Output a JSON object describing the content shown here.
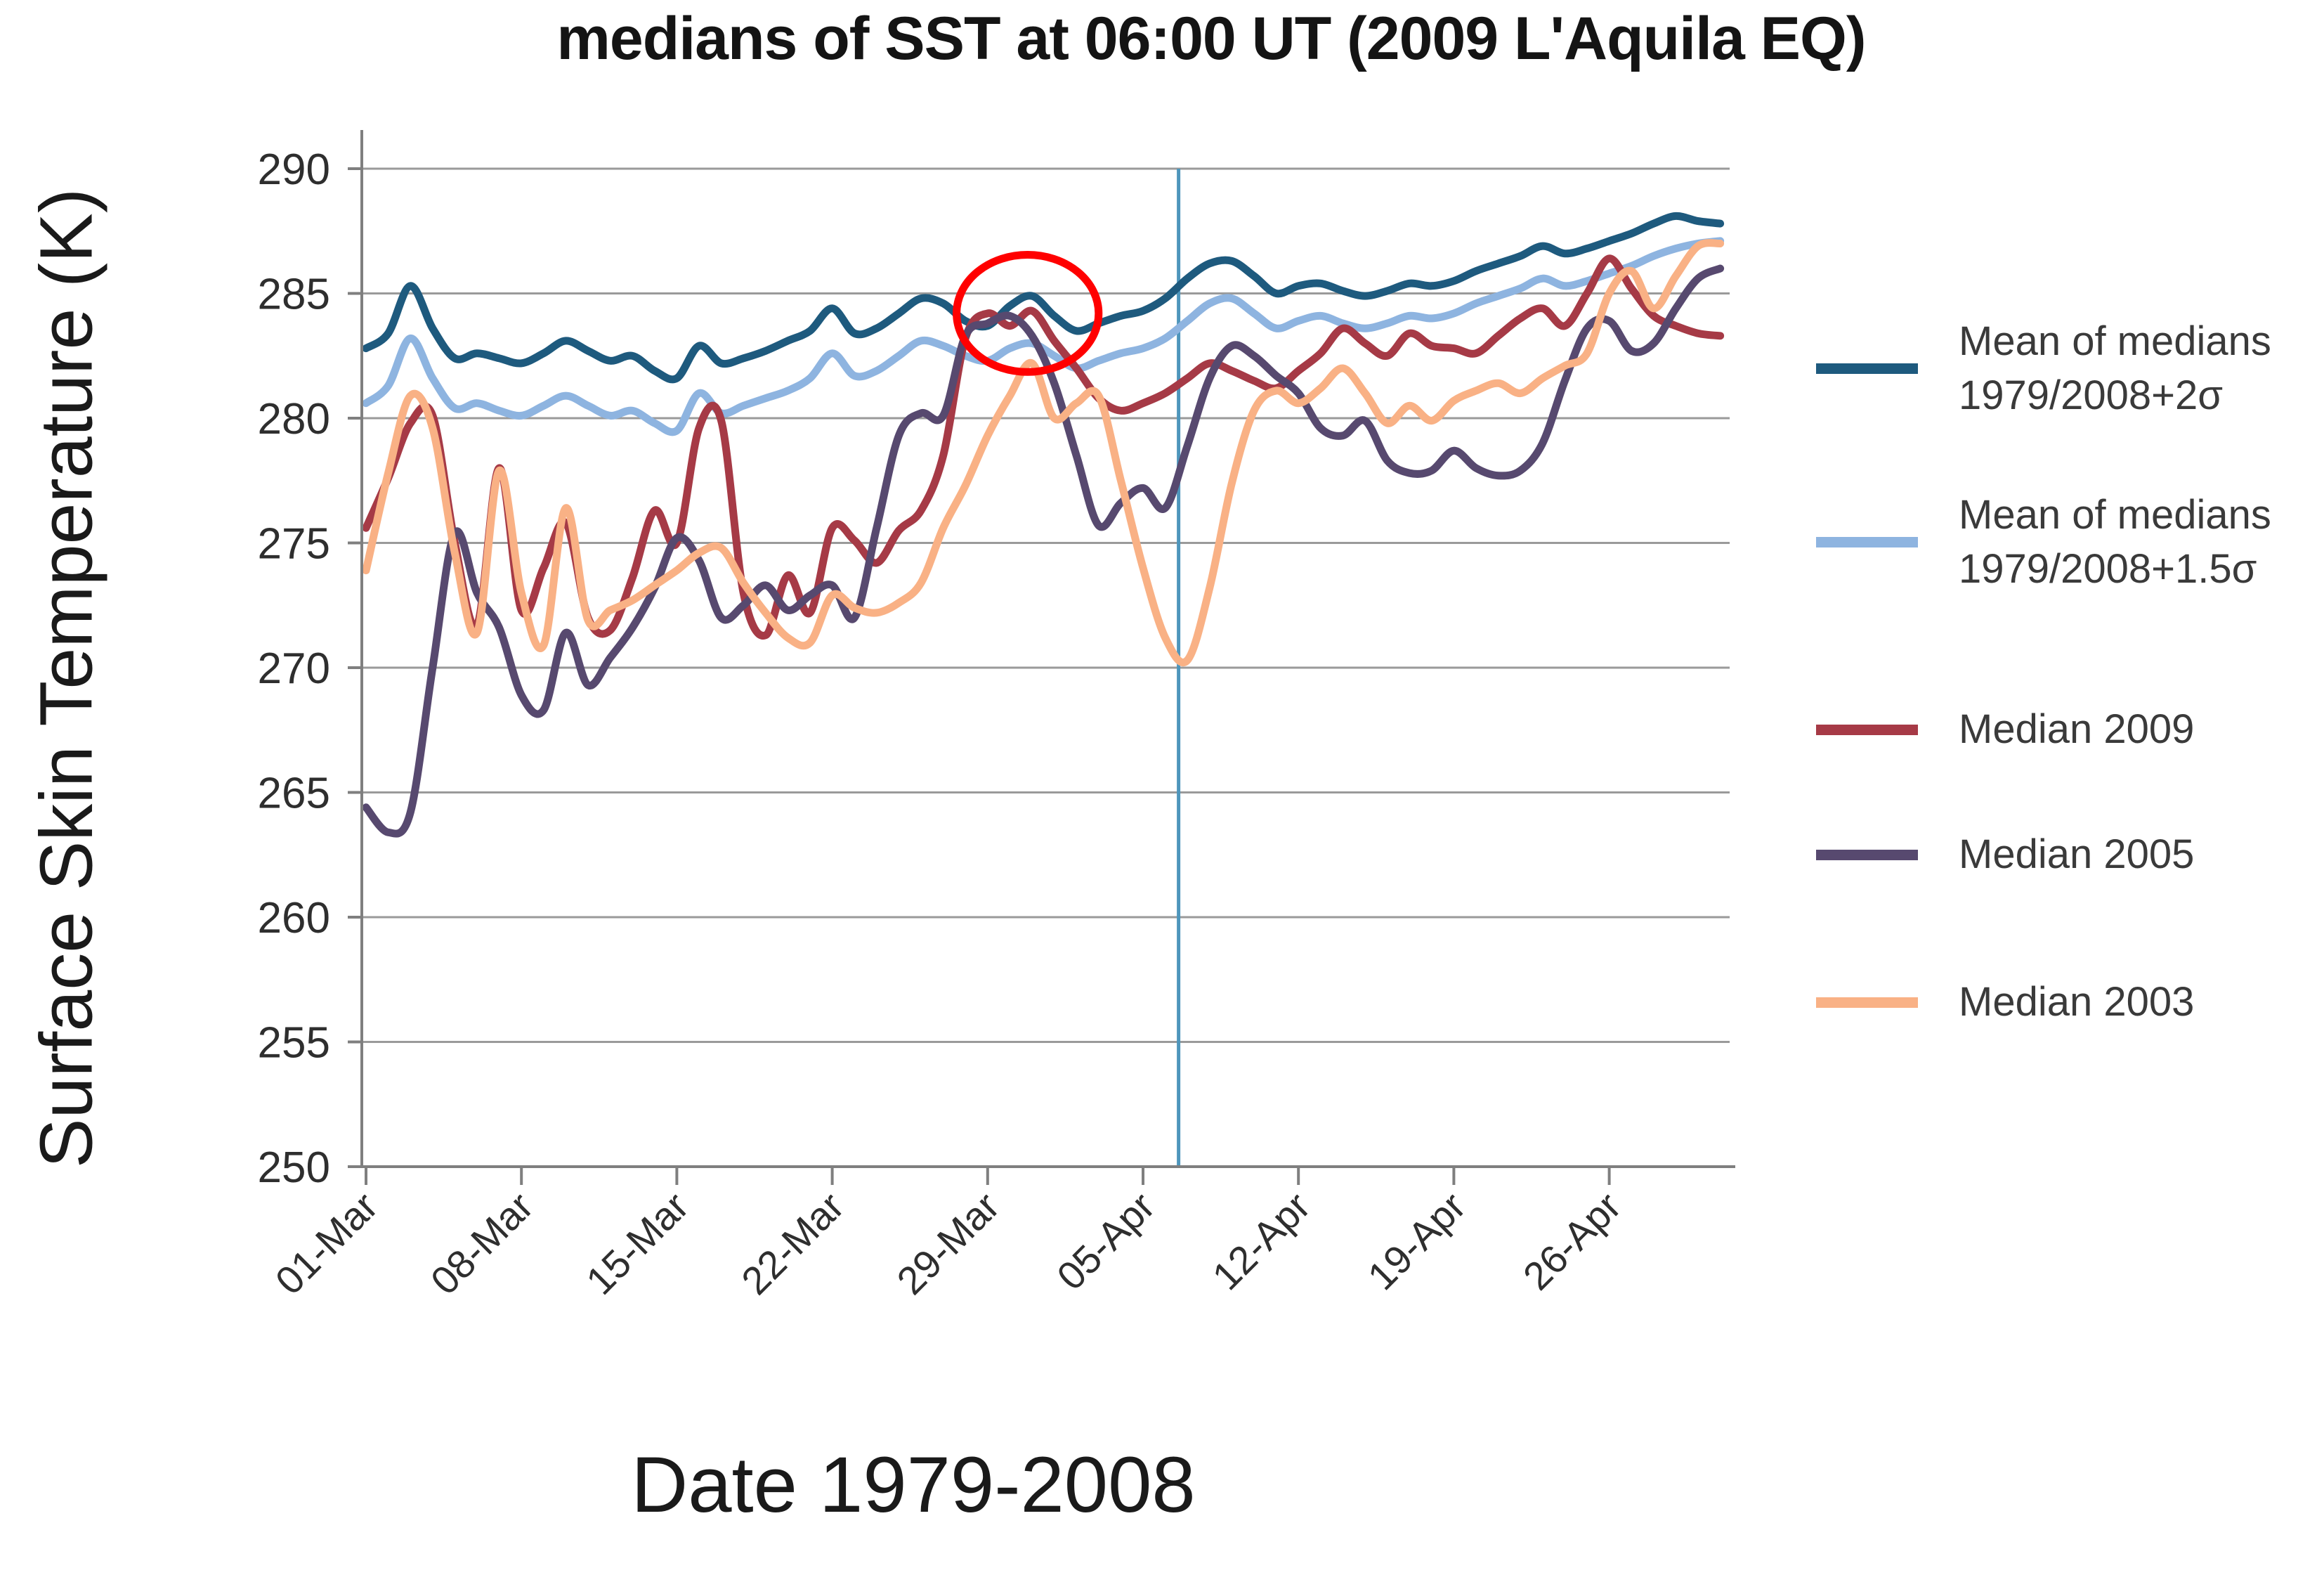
{
  "title": "medians of SST at 06:00 UT (2009 L'Aquila EQ)",
  "chart_data": {
    "type": "line",
    "title": "medians of SST at 06:00 UT (2009 L'Aquila EQ)",
    "xlabel": "Date 1979-2008",
    "ylabel": "Surface Skin Temperature (K)",
    "ylim": [
      250,
      290
    ],
    "yticks": [
      250,
      255,
      260,
      265,
      270,
      275,
      280,
      285,
      290
    ],
    "grid": "horizontal",
    "legend_position": "right",
    "colors": {
      "grid": "#9a9a9a",
      "axis": "#7f7f7f",
      "tick_text": "#2e2e2e",
      "event_line": "#4e96bc",
      "annotation_ellipse": "#ff0000"
    },
    "categories": [
      "01-Mar",
      "02-Mar",
      "03-Mar",
      "04-Mar",
      "05-Mar",
      "06-Mar",
      "07-Mar",
      "08-Mar",
      "09-Mar",
      "10-Mar",
      "11-Mar",
      "12-Mar",
      "13-Mar",
      "14-Mar",
      "15-Mar",
      "16-Mar",
      "17-Mar",
      "18-Mar",
      "19-Mar",
      "20-Mar",
      "21-Mar",
      "22-Mar",
      "23-Mar",
      "24-Mar",
      "25-Mar",
      "26-Mar",
      "27-Mar",
      "28-Mar",
      "29-Mar",
      "30-Mar",
      "31-Mar",
      "01-Apr",
      "02-Apr",
      "03-Apr",
      "04-Apr",
      "05-Apr",
      "06-Apr",
      "07-Apr",
      "08-Apr",
      "09-Apr",
      "10-Apr",
      "11-Apr",
      "12-Apr",
      "13-Apr",
      "14-Apr",
      "15-Apr",
      "16-Apr",
      "17-Apr",
      "18-Apr",
      "19-Apr",
      "20-Apr",
      "21-Apr",
      "22-Apr",
      "23-Apr",
      "24-Apr",
      "25-Apr",
      "26-Apr",
      "27-Apr",
      "28-Apr",
      "29-Apr",
      "30-Apr",
      "01-May"
    ],
    "xtick_indices": [
      0,
      7,
      14,
      21,
      28,
      35,
      42,
      49,
      56
    ],
    "xtick_labels": [
      "01-Mar",
      "08-Mar",
      "15-Mar",
      "22-Mar",
      "29-Mar",
      "05-Apr",
      "12-Apr",
      "19-Apr",
      "26-Apr"
    ],
    "series": [
      {
        "name": "Mean of medians 1979/2008+2σ",
        "legend_lines": "Mean of medians\n1979/2008+2σ",
        "color": "#1e5a7e",
        "values": [
          282.8,
          283.4,
          285.3,
          283.6,
          282.4,
          282.6,
          282.4,
          282.2,
          282.6,
          283.1,
          282.7,
          282.3,
          282.5,
          281.9,
          281.6,
          282.9,
          282.2,
          282.4,
          282.7,
          283.1,
          283.5,
          284.4,
          283.4,
          283.6,
          284.2,
          284.8,
          284.6,
          283.9,
          283.7,
          284.5,
          284.9,
          284.1,
          283.5,
          283.8,
          284.1,
          284.3,
          284.8,
          285.6,
          286.2,
          286.3,
          285.7,
          285.0,
          285.3,
          285.4,
          285.1,
          284.9,
          285.1,
          285.4,
          285.3,
          285.5,
          285.9,
          286.2,
          286.5,
          286.9,
          286.6,
          286.8,
          287.1,
          287.4,
          287.8,
          288.1,
          287.9,
          287.8
        ]
      },
      {
        "name": "Mean of medians 1979/2008+1.5σ",
        "legend_lines": "Mean of medians\n1979/2008+1.5σ",
        "color": "#8eb4e0",
        "values": [
          280.6,
          281.3,
          283.2,
          281.6,
          280.4,
          280.6,
          280.3,
          280.1,
          280.5,
          280.9,
          280.5,
          280.1,
          280.3,
          279.8,
          279.5,
          281.0,
          280.2,
          280.5,
          280.8,
          281.1,
          281.6,
          282.6,
          281.7,
          281.9,
          282.5,
          283.1,
          282.9,
          282.5,
          282.3,
          282.8,
          283.0,
          282.5,
          282.0,
          282.3,
          282.6,
          282.8,
          283.2,
          283.9,
          284.6,
          284.8,
          284.2,
          283.6,
          283.9,
          284.1,
          283.8,
          283.6,
          283.8,
          284.1,
          284.0,
          284.2,
          284.6,
          284.9,
          285.2,
          285.6,
          285.3,
          285.5,
          285.8,
          286.1,
          286.5,
          286.8,
          287.0,
          287.1
        ]
      },
      {
        "name": "Median 2009",
        "legend_lines": "Median 2009",
        "color": "#a63a46",
        "values": [
          275.6,
          277.6,
          279.8,
          280.1,
          275.0,
          271.7,
          278.0,
          272.3,
          274.0,
          275.8,
          272.0,
          271.5,
          273.6,
          276.3,
          275.0,
          279.6,
          279.9,
          273.0,
          271.3,
          273.7,
          272.2,
          275.6,
          275.1,
          274.2,
          275.5,
          276.3,
          278.5,
          283.2,
          284.2,
          283.7,
          284.3,
          283.1,
          282.0,
          280.8,
          280.3,
          280.6,
          281.0,
          281.6,
          282.2,
          281.9,
          281.5,
          281.2,
          281.9,
          282.6,
          283.6,
          283.0,
          282.5,
          283.4,
          282.9,
          282.8,
          282.6,
          283.3,
          284.0,
          284.4,
          283.7,
          285.0,
          286.4,
          285.2,
          284.1,
          283.7,
          283.4,
          283.3
        ]
      },
      {
        "name": "Median 2005",
        "legend_lines": "Median 2005",
        "color": "#57496f",
        "values": [
          264.4,
          263.4,
          264.2,
          270.0,
          275.4,
          273.0,
          271.6,
          268.9,
          268.3,
          271.4,
          269.3,
          270.4,
          271.6,
          273.2,
          275.2,
          274.3,
          272.0,
          272.5,
          273.3,
          272.3,
          272.9,
          273.3,
          272.0,
          275.6,
          279.3,
          280.2,
          280.1,
          283.3,
          283.8,
          284.1,
          283.3,
          281.4,
          278.5,
          275.7,
          276.6,
          277.2,
          276.4,
          278.9,
          281.6,
          282.9,
          282.5,
          281.7,
          281.0,
          279.6,
          279.3,
          279.9,
          278.3,
          277.8,
          277.9,
          278.7,
          278.0,
          277.7,
          277.9,
          279.0,
          281.5,
          283.6,
          283.9,
          282.7,
          283.0,
          284.4,
          285.6,
          286.0
        ]
      },
      {
        "name": "Median 2003",
        "legend_lines": "Median 2003",
        "color": "#f9b185",
        "values": [
          273.9,
          277.8,
          280.9,
          279.6,
          274.6,
          271.4,
          277.9,
          273.0,
          270.9,
          276.4,
          271.9,
          272.3,
          272.7,
          273.3,
          273.9,
          274.6,
          274.8,
          273.4,
          272.2,
          271.2,
          271.0,
          272.9,
          272.4,
          272.2,
          272.6,
          273.4,
          275.6,
          277.3,
          279.3,
          280.9,
          282.2,
          280.0,
          280.6,
          280.9,
          277.5,
          274.0,
          271.2,
          270.3,
          273.2,
          277.4,
          280.3,
          281.1,
          280.6,
          281.2,
          282.0,
          281.0,
          279.8,
          280.5,
          279.9,
          280.7,
          281.1,
          281.4,
          281.0,
          281.6,
          282.1,
          282.6,
          285.0,
          285.9,
          284.4,
          285.7,
          286.9,
          287.0
        ]
      }
    ],
    "annotations": {
      "event_line": {
        "date": "06-Apr",
        "x_index": 36.6
      },
      "ellipse": {
        "x_index": 29.8,
        "y_value": 284.2,
        "rx_days": 3.2,
        "ry_kelvin": 2.35
      }
    }
  }
}
